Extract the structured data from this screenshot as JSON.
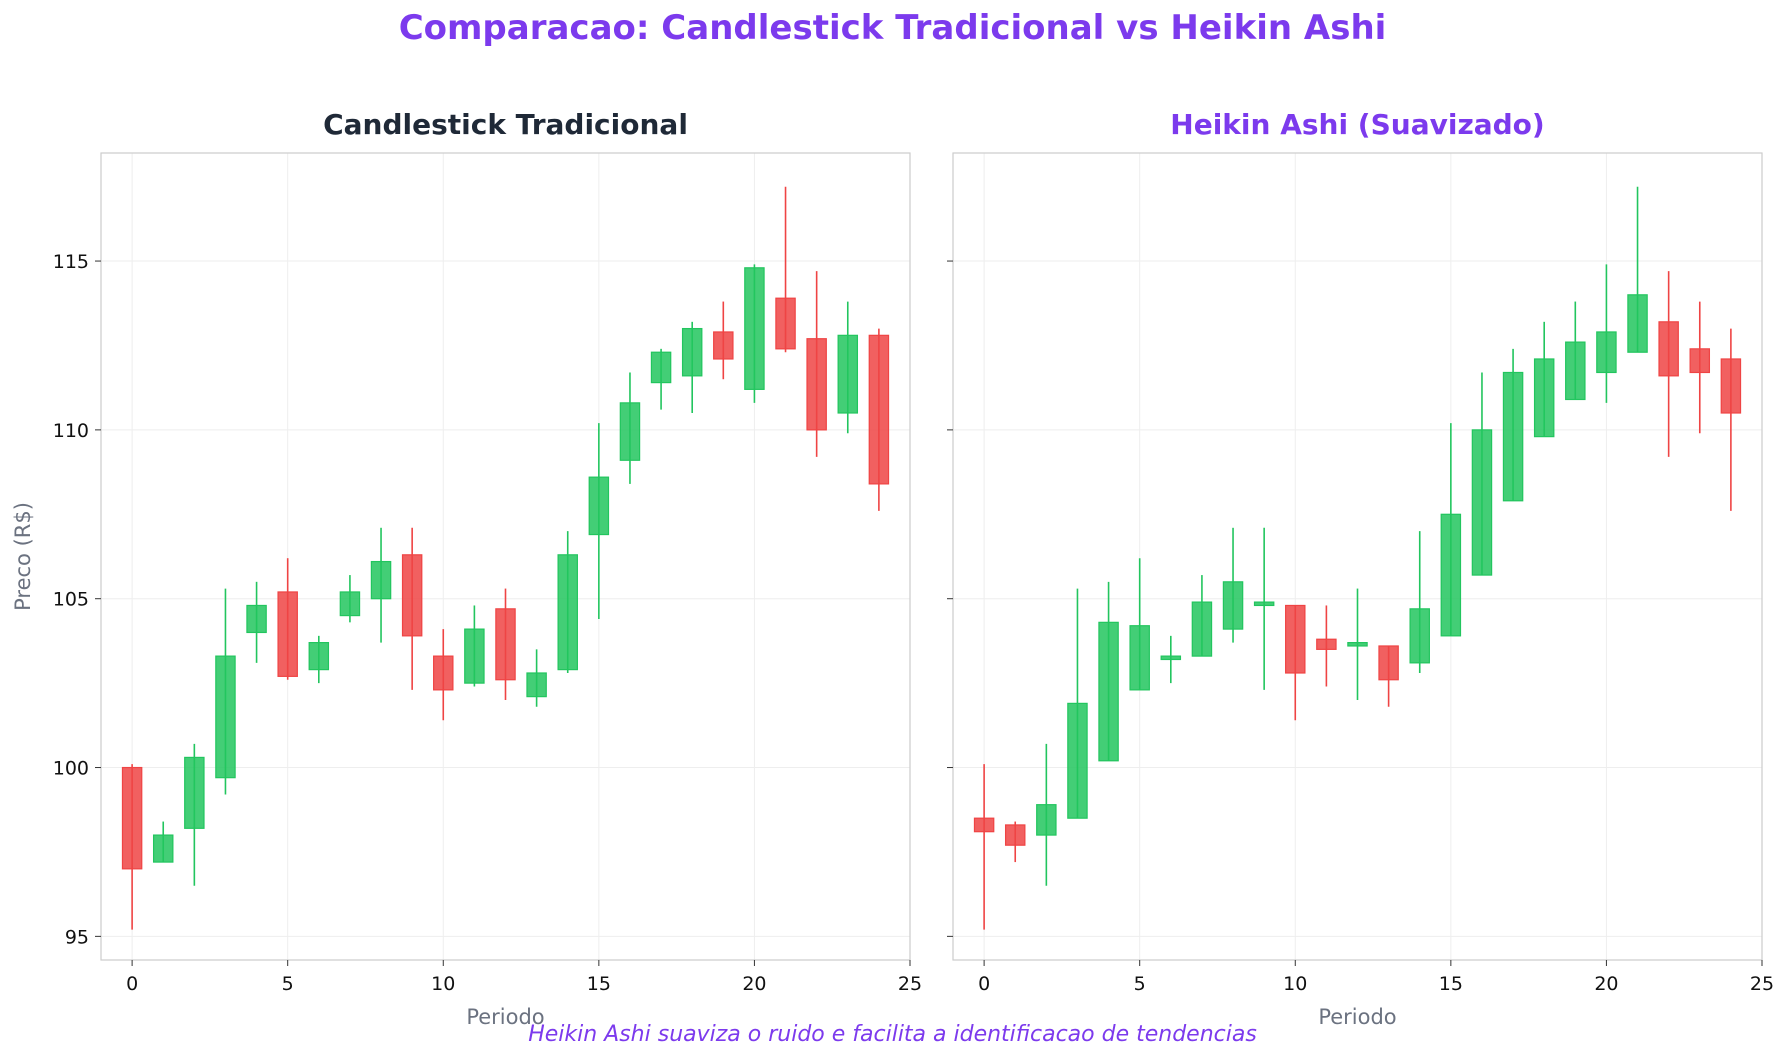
{
  "figure": {
    "title": "Comparacao: Candlestick Tradicional vs Heikin Ashi",
    "footer": "Heikin Ashi suaviza o ruido e facilita a identificacao de tendencias"
  },
  "colors": {
    "title": "#7c3aed",
    "bull": "#22c55e",
    "bear": "#ef4444",
    "grid": "#eeeeee",
    "axis_text": "#6b7280",
    "left_title": "#1f2937"
  },
  "chart_data": [
    {
      "type": "candlestick",
      "title": "Candlestick Tradicional",
      "xlabel": "Periodo",
      "ylabel": "Preco (R$)",
      "xlim": [
        -1,
        25
      ],
      "ylim": [
        94.3,
        118.2
      ],
      "xticks": [
        0,
        5,
        10,
        15,
        20,
        25
      ],
      "yticks": [
        95,
        100,
        105,
        110,
        115
      ],
      "grid": true,
      "candles": [
        {
          "x": 0,
          "open": 100.0,
          "high": 100.1,
          "low": 95.2,
          "close": 97.0
        },
        {
          "x": 1,
          "open": 97.2,
          "high": 98.4,
          "low": 97.2,
          "close": 98.0
        },
        {
          "x": 2,
          "open": 98.2,
          "high": 100.7,
          "low": 96.5,
          "close": 100.3
        },
        {
          "x": 3,
          "open": 99.7,
          "high": 105.3,
          "low": 99.2,
          "close": 103.3
        },
        {
          "x": 4,
          "open": 104.0,
          "high": 105.5,
          "low": 103.1,
          "close": 104.8
        },
        {
          "x": 5,
          "open": 105.2,
          "high": 106.2,
          "low": 102.6,
          "close": 102.7
        },
        {
          "x": 6,
          "open": 102.9,
          "high": 103.9,
          "low": 102.5,
          "close": 103.7
        },
        {
          "x": 7,
          "open": 104.5,
          "high": 105.7,
          "low": 104.3,
          "close": 105.2
        },
        {
          "x": 8,
          "open": 105.0,
          "high": 107.1,
          "low": 103.7,
          "close": 106.1
        },
        {
          "x": 9,
          "open": 106.3,
          "high": 107.1,
          "low": 102.3,
          "close": 103.9
        },
        {
          "x": 10,
          "open": 103.3,
          "high": 104.1,
          "low": 101.4,
          "close": 102.3
        },
        {
          "x": 11,
          "open": 102.5,
          "high": 104.8,
          "low": 102.4,
          "close": 104.1
        },
        {
          "x": 12,
          "open": 104.7,
          "high": 105.3,
          "low": 102.0,
          "close": 102.6
        },
        {
          "x": 13,
          "open": 102.1,
          "high": 103.5,
          "low": 101.8,
          "close": 102.8
        },
        {
          "x": 14,
          "open": 102.9,
          "high": 107.0,
          "low": 102.8,
          "close": 106.3
        },
        {
          "x": 15,
          "open": 106.9,
          "high": 110.2,
          "low": 104.4,
          "close": 108.6
        },
        {
          "x": 16,
          "open": 109.1,
          "high": 111.7,
          "low": 108.4,
          "close": 110.8
        },
        {
          "x": 17,
          "open": 111.4,
          "high": 112.4,
          "low": 110.6,
          "close": 112.3
        },
        {
          "x": 18,
          "open": 111.6,
          "high": 113.2,
          "low": 110.5,
          "close": 113.0
        },
        {
          "x": 19,
          "open": 112.9,
          "high": 113.8,
          "low": 111.5,
          "close": 112.1
        },
        {
          "x": 20,
          "open": 111.2,
          "high": 114.9,
          "low": 110.8,
          "close": 114.8
        },
        {
          "x": 21,
          "open": 113.9,
          "high": 117.2,
          "low": 112.3,
          "close": 112.4
        },
        {
          "x": 22,
          "open": 112.7,
          "high": 114.7,
          "low": 109.2,
          "close": 110.0
        },
        {
          "x": 23,
          "open": 110.5,
          "high": 113.8,
          "low": 109.9,
          "close": 112.8
        },
        {
          "x": 24,
          "open": 112.8,
          "high": 113.0,
          "low": 107.6,
          "close": 108.4
        }
      ]
    },
    {
      "type": "candlestick",
      "title": "Heikin Ashi (Suavizado)",
      "xlabel": "Periodo",
      "ylabel": "",
      "xlim": [
        -1,
        25
      ],
      "ylim": [
        94.3,
        118.2
      ],
      "xticks": [
        0,
        5,
        10,
        15,
        20,
        25
      ],
      "yticks": [
        95,
        100,
        105,
        110,
        115
      ],
      "grid": true,
      "candles": [
        {
          "x": 0,
          "open": 98.5,
          "high": 100.1,
          "low": 95.2,
          "close": 98.1
        },
        {
          "x": 1,
          "open": 98.3,
          "high": 98.4,
          "low": 97.2,
          "close": 97.7
        },
        {
          "x": 2,
          "open": 98.0,
          "high": 100.7,
          "low": 96.5,
          "close": 98.9
        },
        {
          "x": 3,
          "open": 98.5,
          "high": 105.3,
          "low": 98.5,
          "close": 101.9
        },
        {
          "x": 4,
          "open": 100.2,
          "high": 105.5,
          "low": 100.2,
          "close": 104.3
        },
        {
          "x": 5,
          "open": 102.3,
          "high": 106.2,
          "low": 102.3,
          "close": 104.2
        },
        {
          "x": 6,
          "open": 103.2,
          "high": 103.9,
          "low": 102.5,
          "close": 103.3
        },
        {
          "x": 7,
          "open": 103.3,
          "high": 105.7,
          "low": 103.3,
          "close": 104.9
        },
        {
          "x": 8,
          "open": 104.1,
          "high": 107.1,
          "low": 103.7,
          "close": 105.5
        },
        {
          "x": 9,
          "open": 104.8,
          "high": 107.1,
          "low": 102.3,
          "close": 104.9
        },
        {
          "x": 10,
          "open": 104.8,
          "high": 104.8,
          "low": 101.4,
          "close": 102.8
        },
        {
          "x": 11,
          "open": 103.8,
          "high": 104.8,
          "low": 102.4,
          "close": 103.5
        },
        {
          "x": 12,
          "open": 103.6,
          "high": 105.3,
          "low": 102.0,
          "close": 103.7
        },
        {
          "x": 13,
          "open": 103.6,
          "high": 103.6,
          "low": 101.8,
          "close": 102.6
        },
        {
          "x": 14,
          "open": 103.1,
          "high": 107.0,
          "low": 102.8,
          "close": 104.7
        },
        {
          "x": 15,
          "open": 103.9,
          "high": 110.2,
          "low": 103.9,
          "close": 107.5
        },
        {
          "x": 16,
          "open": 105.7,
          "high": 111.7,
          "low": 105.7,
          "close": 110.0
        },
        {
          "x": 17,
          "open": 107.9,
          "high": 112.4,
          "low": 107.9,
          "close": 111.7
        },
        {
          "x": 18,
          "open": 109.8,
          "high": 113.2,
          "low": 109.8,
          "close": 112.1
        },
        {
          "x": 19,
          "open": 110.9,
          "high": 113.8,
          "low": 110.9,
          "close": 112.6
        },
        {
          "x": 20,
          "open": 111.7,
          "high": 114.9,
          "low": 110.8,
          "close": 112.9
        },
        {
          "x": 21,
          "open": 112.3,
          "high": 117.2,
          "low": 112.3,
          "close": 114.0
        },
        {
          "x": 22,
          "open": 113.2,
          "high": 114.7,
          "low": 109.2,
          "close": 111.6
        },
        {
          "x": 23,
          "open": 112.4,
          "high": 113.8,
          "low": 109.9,
          "close": 111.7
        },
        {
          "x": 24,
          "open": 112.1,
          "high": 113.0,
          "low": 107.6,
          "close": 110.5
        }
      ]
    }
  ]
}
